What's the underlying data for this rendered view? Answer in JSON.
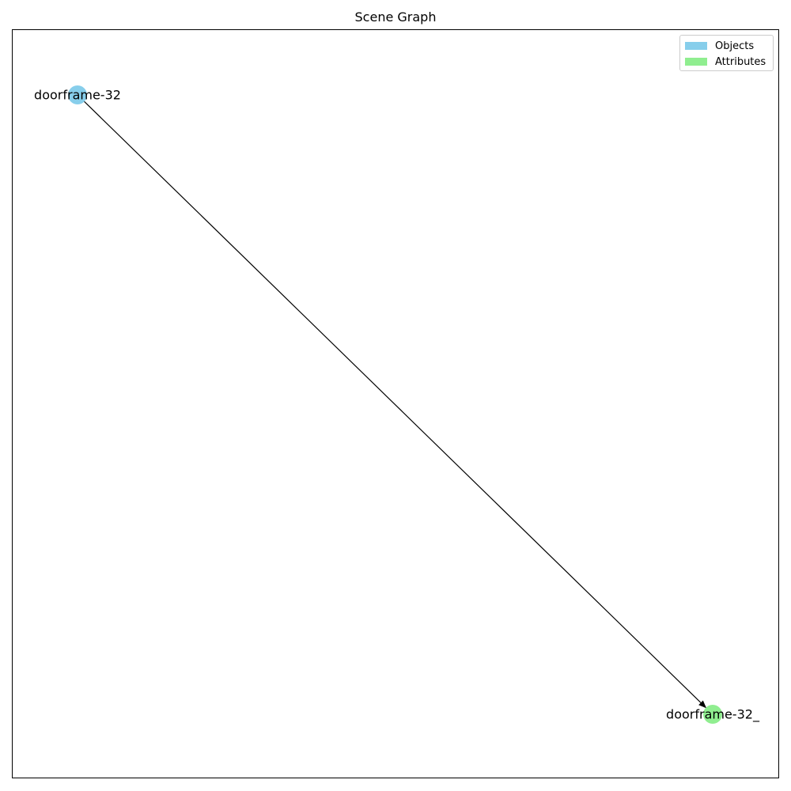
{
  "title": "Scene Graph",
  "colors": {
    "object_node": "#87ceeb",
    "attribute_node": "#90ee90",
    "edge": "#000000"
  },
  "legend": {
    "items": [
      {
        "label": "Objects",
        "color": "#87ceeb"
      },
      {
        "label": "Attributes",
        "color": "#90ee90"
      }
    ]
  },
  "nodes": [
    {
      "id": "doorframe-32",
      "label": "doorframe-32",
      "type": "object"
    },
    {
      "id": "doorframe-32_",
      "label": "doorframe-32_",
      "type": "attribute"
    }
  ],
  "edges": [
    {
      "source": "doorframe-32",
      "target": "doorframe-32_",
      "directed": true
    }
  ]
}
